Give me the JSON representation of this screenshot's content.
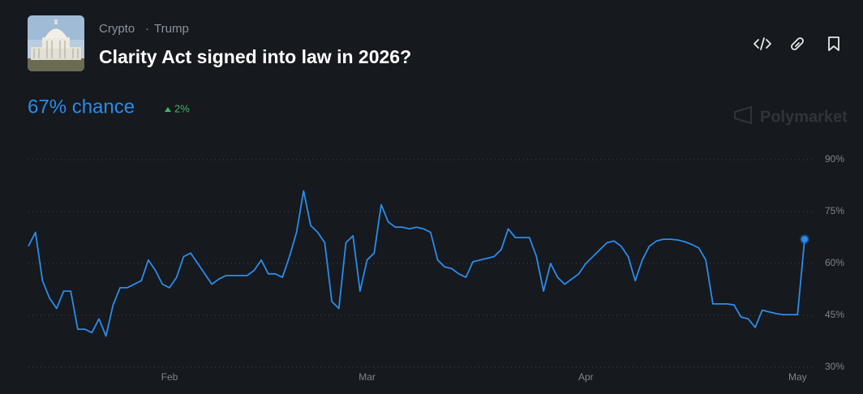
{
  "header": {
    "breadcrumb": [
      "Crypto",
      "Trump"
    ],
    "title": "Clarity Act signed into law in 2026?",
    "chance": "67% chance",
    "change": "2%"
  },
  "watermark": "Polymarket",
  "chart_data": {
    "type": "line",
    "categories": [
      null,
      null,
      null,
      null,
      null,
      null,
      null,
      null,
      null,
      null,
      null,
      null,
      null,
      null,
      null,
      null,
      null,
      null,
      null,
      null,
      "Feb",
      null,
      null,
      null,
      null,
      null,
      null,
      null,
      null,
      null,
      null,
      null,
      null,
      null,
      null,
      null,
      null,
      null,
      null,
      null,
      null,
      null,
      null,
      null,
      null,
      null,
      null,
      null,
      "Mar",
      null,
      null,
      null,
      null,
      null,
      null,
      null,
      null,
      null,
      null,
      null,
      null,
      null,
      null,
      null,
      null,
      null,
      null,
      null,
      null,
      null,
      null,
      null,
      null,
      null,
      null,
      null,
      null,
      null,
      null,
      "Apr",
      null,
      null,
      null,
      null,
      null,
      null,
      null,
      null,
      null,
      null,
      null,
      null,
      null,
      null,
      null,
      null,
      null,
      null,
      null,
      null,
      null,
      null,
      null,
      null,
      null,
      null,
      null,
      null,
      null,
      "May",
      null
    ],
    "series": [
      {
        "color": "#2a8cec",
        "values": [
          65,
          69,
          55,
          50,
          47,
          52,
          52,
          41,
          41,
          40,
          44,
          39,
          48,
          53,
          53,
          54,
          55,
          61,
          58,
          54,
          53,
          56,
          62,
          63,
          60,
          57,
          54,
          55.5,
          56.5,
          56.5,
          56.5,
          56.5,
          58,
          61,
          57,
          57,
          56,
          62,
          69,
          81,
          71,
          69,
          66,
          49,
          47,
          66,
          68,
          52,
          61,
          63,
          77,
          72,
          70.5,
          70.5,
          70,
          70.5,
          70,
          69,
          61,
          59,
          58.5,
          57,
          56,
          60.5,
          61,
          61.5,
          62,
          64,
          70,
          67.5,
          67.5,
          67.5,
          62,
          52,
          60,
          56,
          54,
          55.5,
          57,
          60,
          62,
          64,
          66,
          66.5,
          65,
          62,
          55,
          61,
          65,
          66.5,
          67,
          67,
          66.8,
          66.3,
          65.5,
          64.5,
          61,
          48.3,
          48.3,
          48.3,
          48,
          44.5,
          44,
          41.5,
          46.5,
          46,
          45.5,
          45.2,
          45.2,
          45.2,
          67
        ]
      }
    ],
    "ylim": [
      30,
      90
    ],
    "yticks": [
      {
        "value": 30,
        "label": "30%"
      },
      {
        "value": 45,
        "label": "45%"
      },
      {
        "value": 60,
        "label": "60%"
      },
      {
        "value": 75,
        "label": "75%"
      },
      {
        "value": 90,
        "label": "90%"
      }
    ],
    "grid": true
  }
}
